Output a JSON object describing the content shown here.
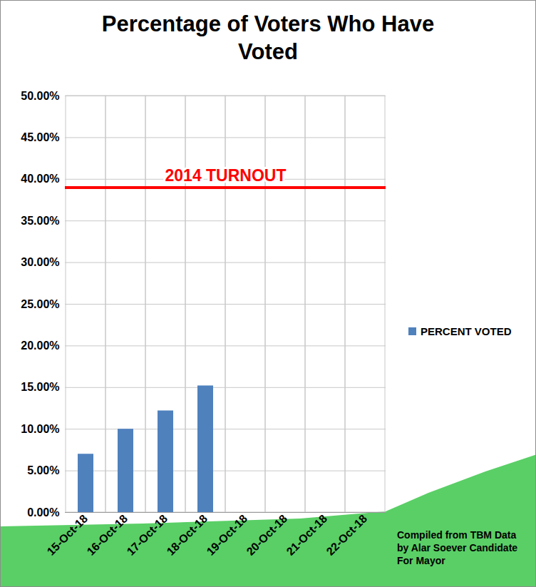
{
  "chart_data": {
    "type": "bar",
    "title": "Percentage of Voters Who Have Voted",
    "categories": [
      "15-Oct-18",
      "16-Oct-18",
      "17-Oct-18",
      "18-Oct-18",
      "19-Oct-18",
      "20-Oct-18",
      "21-Oct-18",
      "22-Oct-18"
    ],
    "series": [
      {
        "name": "PERCENT VOTED",
        "color": "#4f81bd",
        "values": [
          7,
          10,
          12.2,
          15.2,
          null,
          null,
          null,
          null
        ]
      }
    ],
    "ylim": [
      0,
      50
    ],
    "yticks": [
      {
        "value": 0,
        "label": "0.00%"
      },
      {
        "value": 5,
        "label": "5.00%"
      },
      {
        "value": 10,
        "label": "10.00%"
      },
      {
        "value": 15,
        "label": "15.00%"
      },
      {
        "value": 20,
        "label": "20.00%"
      },
      {
        "value": 25,
        "label": "25.00%"
      },
      {
        "value": 30,
        "label": "30.00%"
      },
      {
        "value": 35,
        "label": "35.00%"
      },
      {
        "value": 40,
        "label": "40.00%"
      },
      {
        "value": 45,
        "label": "45.00%"
      },
      {
        "value": 50,
        "label": "50.00%"
      }
    ],
    "annotations": [
      {
        "text": "2014 TURNOUT",
        "y": 39,
        "color": "#ff0000"
      }
    ],
    "caption": "Compiled from TBM Data by Alar Soever Candidate For Mayor",
    "grid": true,
    "legend": "right",
    "data_labels": false
  }
}
